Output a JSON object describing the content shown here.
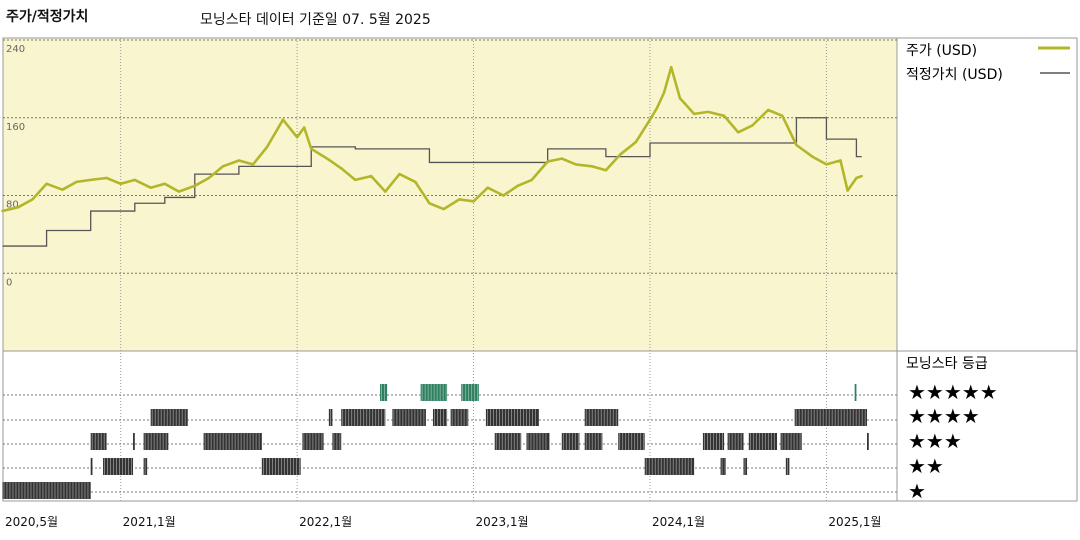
{
  "header": {
    "title": "주가/적정가치",
    "subtitle": "모닝스타 데이터 기준일 07. 5월 2025"
  },
  "legend": {
    "price": "주가 (USD)",
    "fair": "적정가치 (USD)",
    "rating_title": "모닝스타 등급",
    "star_rows": [
      "★★★★★",
      "★★★★",
      "★★★",
      "★★",
      "★"
    ]
  },
  "colors": {
    "price": "#b3b52a",
    "fair": "#555555",
    "panel_bg": "#f9f6cf",
    "bar_dark": "#333333",
    "bar_green": "#2e8060"
  },
  "chart_data": [
    {
      "type": "line",
      "title": "",
      "x_axis": {
        "start": "2020.5",
        "end": "2025.5",
        "ticks": [
          "2020,5월",
          "2021,1월",
          "2022,1월",
          "2023,1월",
          "2024,1월",
          "2025,1월"
        ],
        "tick_x": [
          2020.333,
          2021.0,
          2022.0,
          2023.0,
          2024.0,
          2025.0
        ]
      },
      "y_axis": {
        "min": -80,
        "max": 240,
        "ticks": [
          "240",
          "160",
          "80",
          "0"
        ],
        "tick_values": [
          240,
          160,
          80,
          0
        ]
      },
      "grid": true,
      "legend_position": "right",
      "series": [
        {
          "name": "주가 (USD)",
          "points": [
            [
              2020.33,
              64
            ],
            [
              2020.42,
              68
            ],
            [
              2020.5,
              76
            ],
            [
              2020.58,
              92
            ],
            [
              2020.67,
              86
            ],
            [
              2020.75,
              94
            ],
            [
              2020.83,
              96
            ],
            [
              2020.92,
              98
            ],
            [
              2021.0,
              92
            ],
            [
              2021.08,
              96
            ],
            [
              2021.17,
              88
            ],
            [
              2021.25,
              92
            ],
            [
              2021.33,
              84
            ],
            [
              2021.42,
              90
            ],
            [
              2021.5,
              98
            ],
            [
              2021.58,
              110
            ],
            [
              2021.67,
              116
            ],
            [
              2021.75,
              112
            ],
            [
              2021.83,
              130
            ],
            [
              2021.92,
              158
            ],
            [
              2022.0,
              140
            ],
            [
              2022.04,
              150
            ],
            [
              2022.08,
              128
            ],
            [
              2022.17,
              118
            ],
            [
              2022.25,
              108
            ],
            [
              2022.33,
              96
            ],
            [
              2022.42,
              100
            ],
            [
              2022.5,
              84
            ],
            [
              2022.58,
              102
            ],
            [
              2022.67,
              94
            ],
            [
              2022.75,
              72
            ],
            [
              2022.83,
              66
            ],
            [
              2022.92,
              76
            ],
            [
              2023.0,
              74
            ],
            [
              2023.08,
              88
            ],
            [
              2023.17,
              80
            ],
            [
              2023.25,
              90
            ],
            [
              2023.33,
              96
            ],
            [
              2023.42,
              115
            ],
            [
              2023.5,
              118
            ],
            [
              2023.58,
              112
            ],
            [
              2023.67,
              110
            ],
            [
              2023.75,
              106
            ],
            [
              2023.83,
              122
            ],
            [
              2023.92,
              135
            ],
            [
              2024.0,
              158
            ],
            [
              2024.04,
              170
            ],
            [
              2024.08,
              186
            ],
            [
              2024.12,
              212
            ],
            [
              2024.17,
              180
            ],
            [
              2024.25,
              164
            ],
            [
              2024.33,
              166
            ],
            [
              2024.42,
              162
            ],
            [
              2024.5,
              145
            ],
            [
              2024.58,
              152
            ],
            [
              2024.67,
              168
            ],
            [
              2024.75,
              162
            ],
            [
              2024.83,
              132
            ],
            [
              2024.92,
              120
            ],
            [
              2025.0,
              112
            ],
            [
              2025.08,
              116
            ],
            [
              2025.12,
              85
            ],
            [
              2025.17,
              98
            ],
            [
              2025.2,
              100
            ]
          ]
        },
        {
          "name": "적정가치 (USD)",
          "steps": [
            [
              2020.33,
              28
            ],
            [
              2020.58,
              44
            ],
            [
              2020.83,
              64
            ],
            [
              2021.08,
              72
            ],
            [
              2021.25,
              78
            ],
            [
              2021.42,
              102
            ],
            [
              2021.67,
              110
            ],
            [
              2022.08,
              130
            ],
            [
              2022.33,
              128
            ],
            [
              2022.75,
              114
            ],
            [
              2023.42,
              128
            ],
            [
              2023.75,
              120
            ],
            [
              2024.0,
              134
            ],
            [
              2024.83,
              160
            ],
            [
              2025.0,
              138
            ],
            [
              2025.17,
              120
            ],
            [
              2025.2,
              120
            ]
          ]
        }
      ]
    },
    {
      "type": "bar",
      "title": "모닝스타 등급",
      "x_axis": {
        "start": "2020.5",
        "end": "2025.5"
      },
      "rows": [
        "★★★★★",
        "★★★★",
        "★★★",
        "★★",
        "★"
      ],
      "segments": [
        {
          "stars": 5,
          "from": 2022.47,
          "to": 2022.51
        },
        {
          "stars": 5,
          "from": 2022.7,
          "to": 2022.85
        },
        {
          "stars": 5,
          "from": 2022.93,
          "to": 2023.03
        },
        {
          "stars": 5,
          "from": 2025.16,
          "to": 2025.17
        },
        {
          "stars": 4,
          "from": 2021.17,
          "to": 2021.38
        },
        {
          "stars": 4,
          "from": 2022.18,
          "to": 2022.2
        },
        {
          "stars": 4,
          "from": 2022.25,
          "to": 2022.5
        },
        {
          "stars": 4,
          "from": 2022.54,
          "to": 2022.73
        },
        {
          "stars": 4,
          "from": 2022.77,
          "to": 2022.85
        },
        {
          "stars": 4,
          "from": 2022.87,
          "to": 2022.97
        },
        {
          "stars": 4,
          "from": 2023.07,
          "to": 2023.37
        },
        {
          "stars": 4,
          "from": 2023.63,
          "to": 2023.82
        },
        {
          "stars": 4,
          "from": 2024.82,
          "to": 2025.23
        },
        {
          "stars": 3,
          "from": 2020.83,
          "to": 2020.92
        },
        {
          "stars": 3,
          "from": 2021.07,
          "to": 2021.08
        },
        {
          "stars": 3,
          "from": 2021.13,
          "to": 2021.27
        },
        {
          "stars": 3,
          "from": 2021.47,
          "to": 2021.8
        },
        {
          "stars": 3,
          "from": 2022.03,
          "to": 2022.15
        },
        {
          "stars": 3,
          "from": 2022.2,
          "to": 2022.25
        },
        {
          "stars": 3,
          "from": 2023.12,
          "to": 2023.27
        },
        {
          "stars": 3,
          "from": 2023.3,
          "to": 2023.43
        },
        {
          "stars": 3,
          "from": 2023.5,
          "to": 2023.6
        },
        {
          "stars": 3,
          "from": 2023.63,
          "to": 2023.73
        },
        {
          "stars": 3,
          "from": 2023.82,
          "to": 2023.97
        },
        {
          "stars": 3,
          "from": 2024.3,
          "to": 2024.42
        },
        {
          "stars": 3,
          "from": 2024.44,
          "to": 2024.53
        },
        {
          "stars": 3,
          "from": 2024.56,
          "to": 2024.72
        },
        {
          "stars": 3,
          "from": 2024.74,
          "to": 2024.86
        },
        {
          "stars": 3,
          "from": 2025.23,
          "to": 2025.24
        },
        {
          "stars": 2,
          "from": 2020.83,
          "to": 2020.84
        },
        {
          "stars": 2,
          "from": 2020.9,
          "to": 2021.07
        },
        {
          "stars": 2,
          "from": 2021.13,
          "to": 2021.15
        },
        {
          "stars": 2,
          "from": 2021.8,
          "to": 2022.02
        },
        {
          "stars": 2,
          "from": 2023.97,
          "to": 2024.25
        },
        {
          "stars": 2,
          "from": 2024.4,
          "to": 2024.43
        },
        {
          "stars": 2,
          "from": 2024.53,
          "to": 2024.55
        },
        {
          "stars": 2,
          "from": 2024.77,
          "to": 2024.79
        },
        {
          "stars": 1,
          "from": 2020.33,
          "to": 2020.83
        }
      ]
    }
  ],
  "x_ticks": [
    "2020,5월",
    "2021,1월",
    "2022,1월",
    "2023,1월",
    "2024,1월",
    "2025,1월"
  ]
}
